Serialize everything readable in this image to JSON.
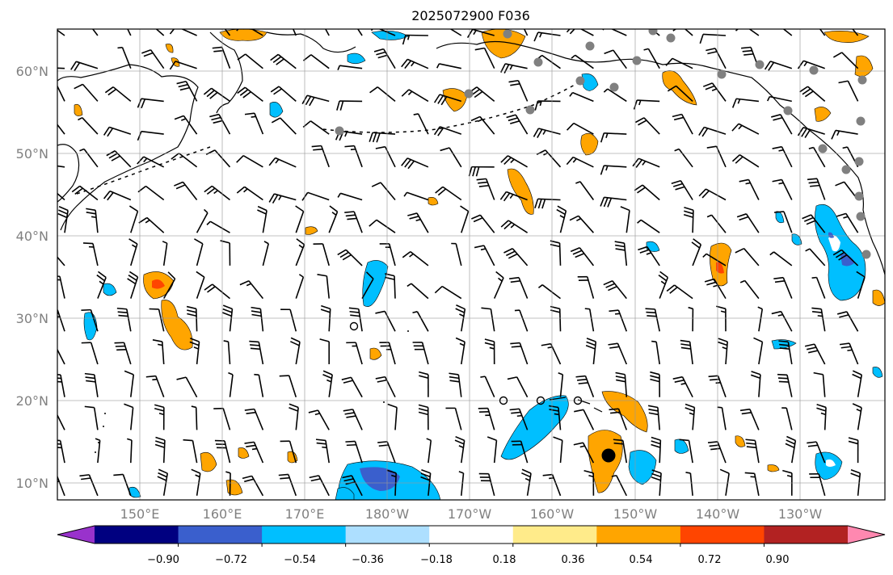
{
  "title": "2025072900 F036",
  "map": {
    "lat_labels": [
      "60°N",
      "50°N",
      "40°N",
      "30°N",
      "20°N",
      "10°N"
    ],
    "lon_labels": [
      "150°E",
      "160°E",
      "170°E",
      "180°W",
      "170°W",
      "160°W",
      "150°W",
      "140°W",
      "130°W"
    ],
    "grid": true,
    "land_outline_color": "#000000"
  },
  "colorbar": {
    "extend": "both",
    "colors": [
      "#9932CC",
      "#000080",
      "#3A5FCD",
      "#00BFFF",
      "#ADDFFF",
      "#FFFFFF",
      "#FFEB8A",
      "#FFA500",
      "#FF4500",
      "#B22222",
      "#FF88B0"
    ],
    "tick_labels": [
      "−0.90",
      "−0.72",
      "−0.54",
      "−0.36",
      "−0.18",
      "0.18",
      "0.36",
      "0.54",
      "0.72",
      "0.90"
    ]
  },
  "colors": {
    "positive_shading": "#FFA500",
    "strong_positive": "#FF4500",
    "negative_shading": "#00BFFF",
    "strong_negative": "#3A5FCD",
    "station_marker": "#808080",
    "storm_marker": "#000000"
  }
}
